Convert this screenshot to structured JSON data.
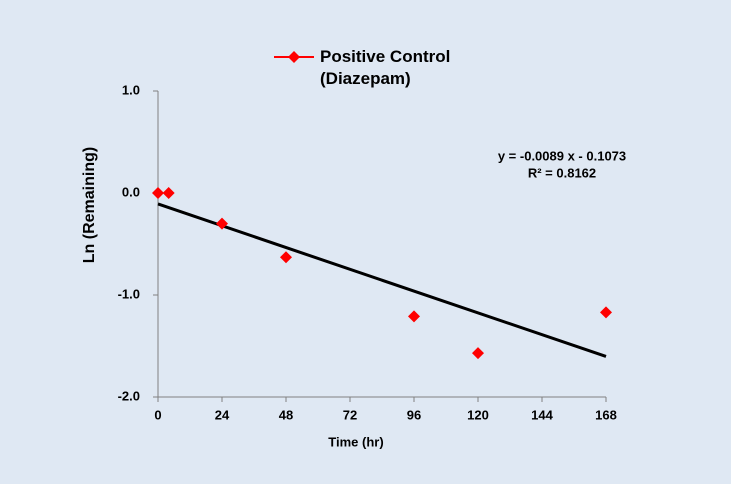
{
  "chart_data": {
    "type": "scatter",
    "x_label": "Time (hr)",
    "y_label": "Ln (Remaining)",
    "series": [
      {
        "name": "Positive Control\n(Diazepam)",
        "color": "#ff0000",
        "x": [
          0,
          4,
          24,
          48,
          96,
          120,
          168
        ],
        "values": [
          0.0,
          0.0,
          -0.3,
          -0.63,
          -1.21,
          -1.57,
          -1.17
        ]
      }
    ],
    "trendline": {
      "slope": -0.0089,
      "intercept": -0.1073,
      "color": "#000000",
      "equation": "y = -0.0089 x - 0.1073",
      "r_squared": "R² = 0.8162"
    },
    "xlim": [
      0,
      168
    ],
    "xticks": [
      0,
      24,
      48,
      72,
      96,
      120,
      144,
      168
    ],
    "ylim": [
      -2,
      1
    ],
    "yticks": [
      {
        "value": -2,
        "label": "-2.0"
      },
      {
        "value": -1,
        "label": "-1.0"
      },
      {
        "value": 0,
        "label": "0.0"
      },
      {
        "value": 1,
        "label": "1.0"
      }
    ],
    "legend": "top",
    "grid": false
  }
}
